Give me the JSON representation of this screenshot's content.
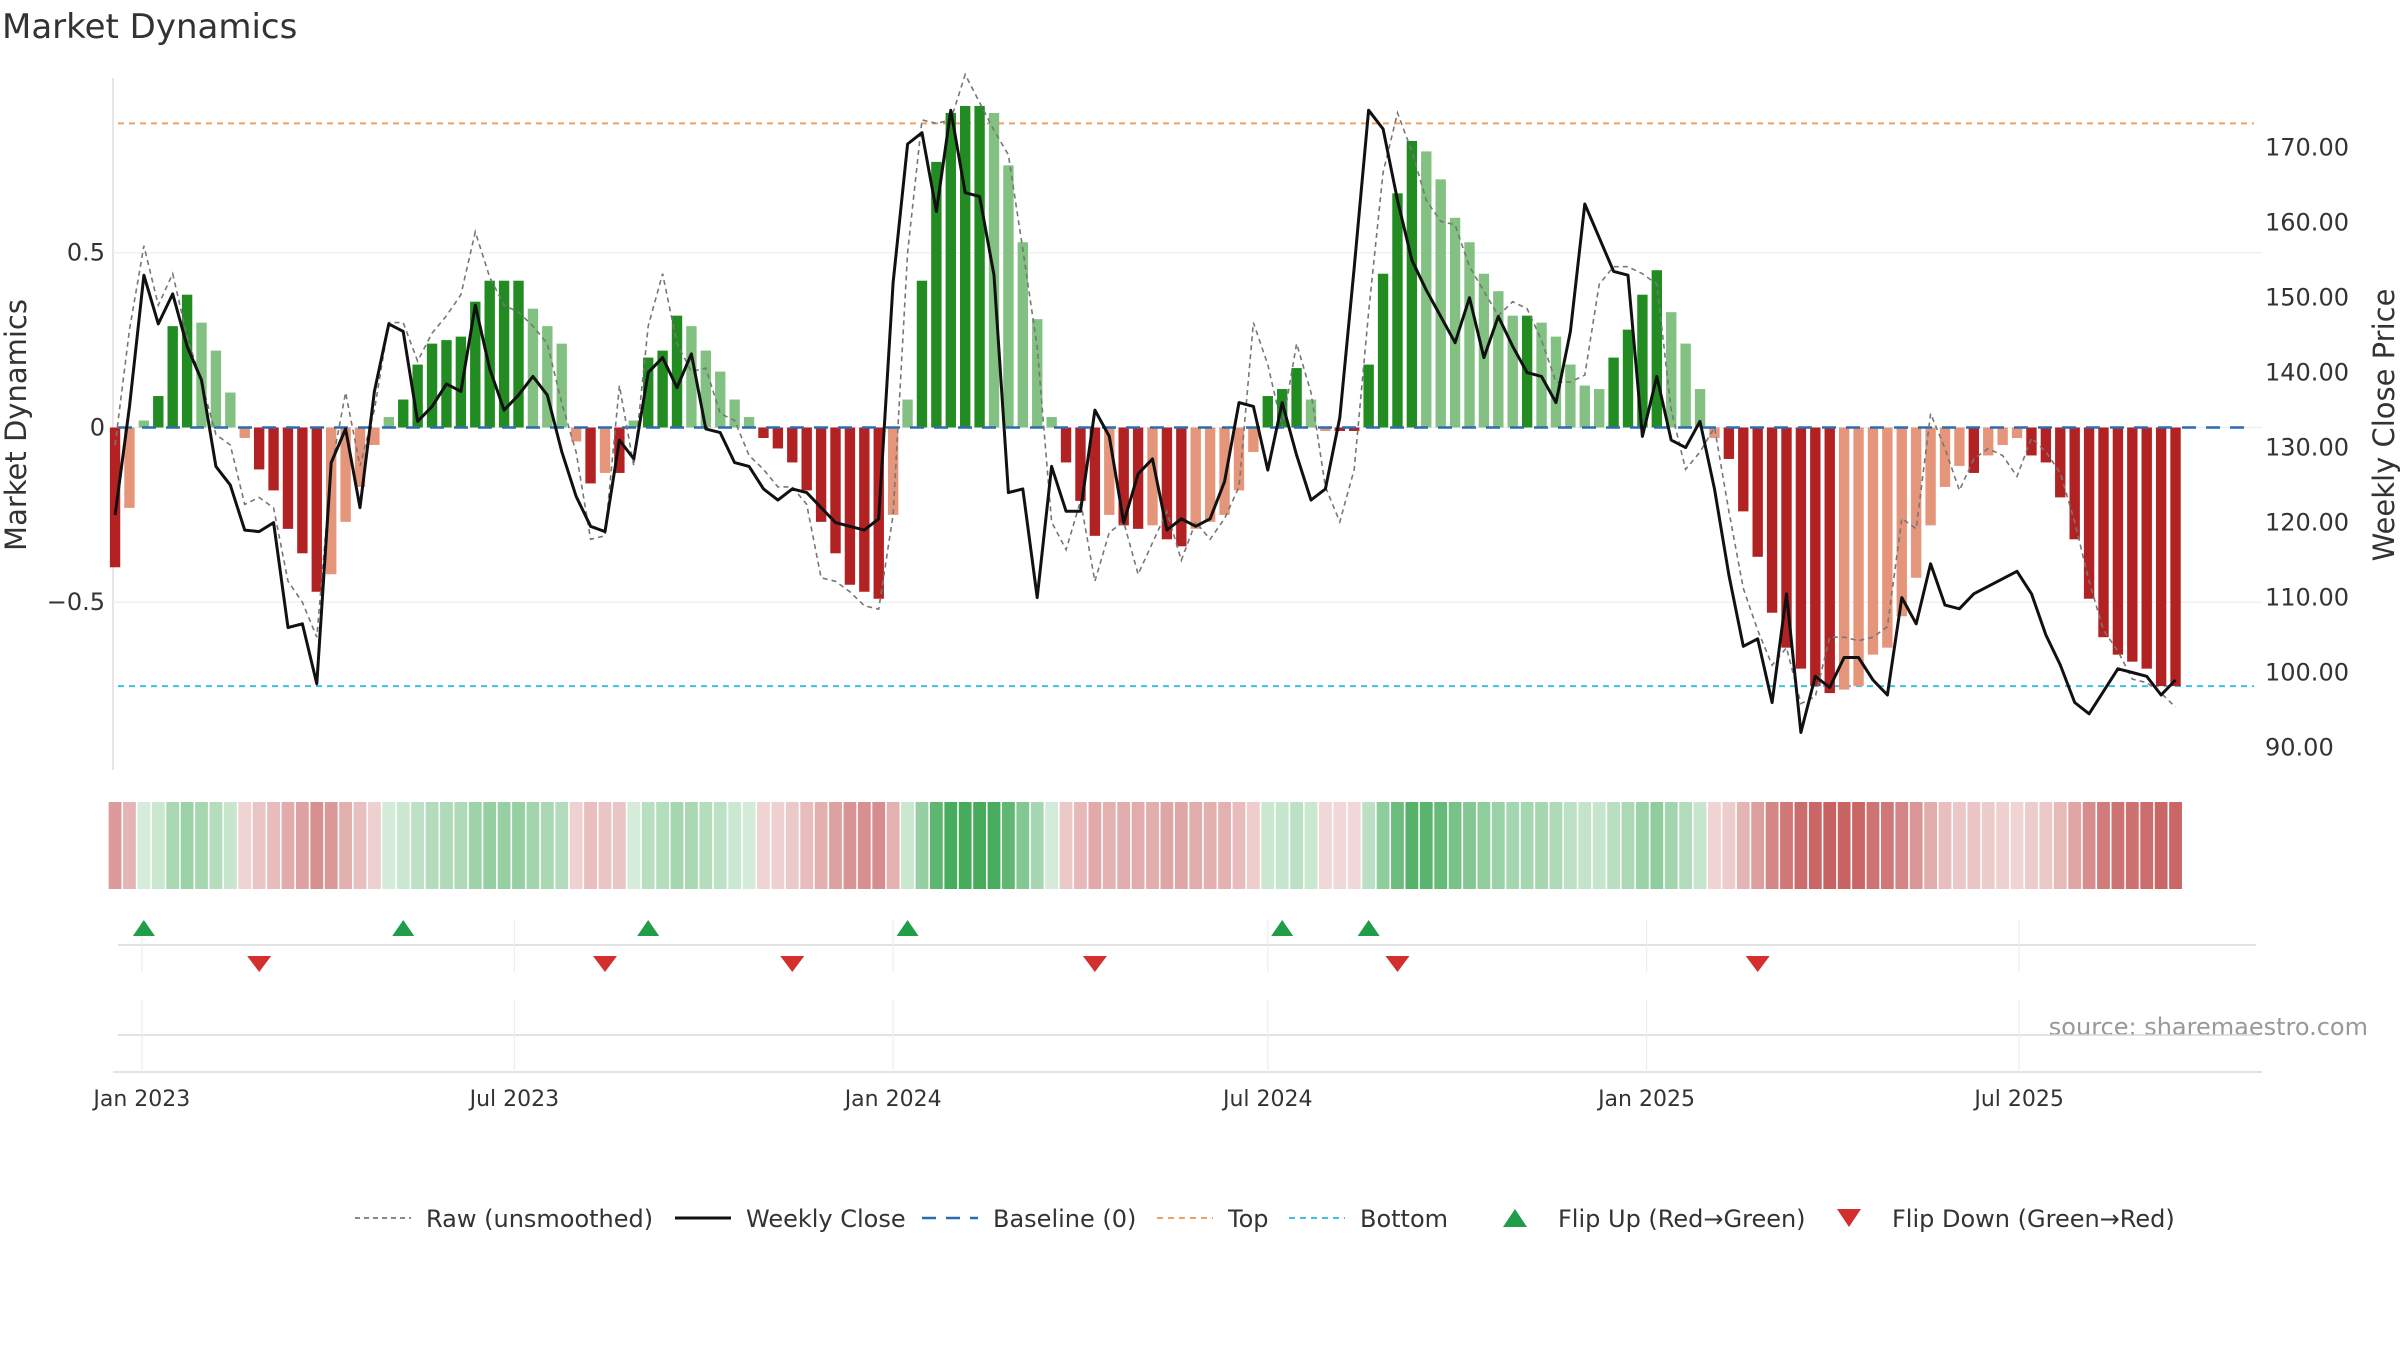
{
  "chart_data": {
    "type": "bar",
    "title": "Market Dynamics",
    "ylabel": "Market Dynamics",
    "y2label": "Weekly Close Price",
    "ylim": [
      -0.98,
      1.0
    ],
    "y2lim": [
      87.0,
      179.3
    ],
    "y_ticks": [
      {
        "v": 0.5,
        "label": "0.5"
      },
      {
        "v": 0,
        "label": "0"
      },
      {
        "v": -0.5,
        "label": "−0.5"
      }
    ],
    "y2_ticks": [
      {
        "v": 170,
        "label": "170.00"
      },
      {
        "v": 160,
        "label": "160.00"
      },
      {
        "v": 150,
        "label": "150.00"
      },
      {
        "v": 140,
        "label": "140.00"
      },
      {
        "v": 130,
        "label": "130.00"
      },
      {
        "v": 120,
        "label": "120.00"
      },
      {
        "v": 110,
        "label": "110.00"
      },
      {
        "v": 100,
        "label": "100.00"
      },
      {
        "v": 90,
        "label": "90.00"
      }
    ],
    "x_ticks": [
      {
        "date": "2023-01-01",
        "label": "Jan 2023"
      },
      {
        "date": "2023-07-01",
        "label": "Jul 2023"
      },
      {
        "date": "2024-01-01",
        "label": "Jan 2024"
      },
      {
        "date": "2024-07-01",
        "label": "Jul 2024"
      },
      {
        "date": "2025-01-01",
        "label": "Jan 2025"
      },
      {
        "date": "2025-07-01",
        "label": "Jul 2025"
      }
    ],
    "x_range": [
      "2022-12-18",
      "2025-10-27"
    ],
    "start_date": "2022-12-19",
    "top_line": 0.87,
    "bottom_line": -0.74,
    "grid": true,
    "legend_position": "bottom",
    "colors": {
      "green_strong": "#228b22",
      "green_light": "#82c182",
      "red_strong": "#b22222",
      "red_light": "#e5967a",
      "close": "#111111",
      "raw": "#777777",
      "baseline": "#2a6db0",
      "top": "#f0a060",
      "bottom": "#40c0e0",
      "flip_up": "#1f9d48",
      "flip_down": "#d32f2f"
    },
    "weeks": [
      "2022-12-19",
      "2022-12-26",
      "2023-01-02",
      "2023-01-09",
      "2023-01-16",
      "2023-01-23",
      "2023-01-30",
      "2023-02-06",
      "2023-02-13",
      "2023-02-20",
      "2023-02-27",
      "2023-03-06",
      "2023-03-13",
      "2023-03-20",
      "2023-03-27",
      "2023-04-03",
      "2023-04-10",
      "2023-04-17",
      "2023-04-24",
      "2023-05-01",
      "2023-05-08",
      "2023-05-15",
      "2023-05-22",
      "2023-05-29",
      "2023-06-05",
      "2023-06-12",
      "2023-06-19",
      "2023-06-26",
      "2023-07-03",
      "2023-07-10",
      "2023-07-17",
      "2023-07-24",
      "2023-07-31",
      "2023-08-07",
      "2023-08-14",
      "2023-08-21",
      "2023-08-28",
      "2023-09-04",
      "2023-09-11",
      "2023-09-18",
      "2023-09-25",
      "2023-10-02",
      "2023-10-09",
      "2023-10-16",
      "2023-10-23",
      "2023-10-30",
      "2023-11-06",
      "2023-11-13",
      "2023-11-20",
      "2023-11-27",
      "2023-12-04",
      "2023-12-11",
      "2023-12-18",
      "2023-12-25",
      "2024-01-01",
      "2024-01-08",
      "2024-01-15",
      "2024-01-22",
      "2024-01-29",
      "2024-02-05",
      "2024-02-12",
      "2024-02-19",
      "2024-02-26",
      "2024-03-04",
      "2024-03-11",
      "2024-03-18",
      "2024-03-25",
      "2024-04-01",
      "2024-04-08",
      "2024-04-15",
      "2024-04-22",
      "2024-04-29",
      "2024-05-06",
      "2024-05-13",
      "2024-05-20",
      "2024-05-27",
      "2024-06-03",
      "2024-06-10",
      "2024-06-17",
      "2024-06-24",
      "2024-07-01",
      "2024-07-08",
      "2024-07-15",
      "2024-07-22",
      "2024-07-29",
      "2024-08-05",
      "2024-08-12",
      "2024-08-19",
      "2024-08-26",
      "2024-09-02",
      "2024-09-09",
      "2024-09-16",
      "2024-09-23",
      "2024-09-30",
      "2024-10-07",
      "2024-10-14",
      "2024-10-21",
      "2024-10-28",
      "2024-11-04",
      "2024-11-11",
      "2024-11-18",
      "2024-11-25",
      "2024-12-02",
      "2024-12-09",
      "2024-12-16",
      "2024-12-23",
      "2024-12-30",
      "2025-01-06",
      "2025-01-13",
      "2025-01-20",
      "2025-01-27",
      "2025-02-03",
      "2025-02-10",
      "2025-02-17",
      "2025-02-24",
      "2025-03-03",
      "2025-03-10",
      "2025-03-17",
      "2025-03-24",
      "2025-03-31",
      "2025-04-07",
      "2025-04-14",
      "2025-04-21",
      "2025-04-28",
      "2025-05-05",
      "2025-05-12",
      "2025-05-19",
      "2025-05-26",
      "2025-06-02",
      "2025-06-09",
      "2025-06-16",
      "2025-06-23",
      "2025-06-30",
      "2025-07-07",
      "2025-07-14",
      "2025-07-21",
      "2025-07-28",
      "2025-08-04",
      "2025-08-11",
      "2025-08-18",
      "2025-08-25",
      "2025-09-01",
      "2025-09-08",
      "2025-09-15",
      "2025-09-22",
      "2025-09-29",
      "2025-10-06",
      "2025-10-13",
      "2025-10-20"
    ],
    "series": [
      {
        "name": "Market Dynamics",
        "type": "bar",
        "values": [
          -0.4,
          -0.23,
          0.02,
          0.09,
          0.29,
          0.38,
          0.3,
          0.22,
          0.1,
          -0.03,
          -0.12,
          -0.18,
          -0.29,
          -0.36,
          -0.47,
          -0.42,
          -0.27,
          -0.17,
          -0.05,
          0.03,
          0.08,
          0.18,
          0.24,
          0.25,
          0.26,
          0.36,
          0.42,
          0.42,
          0.42,
          0.34,
          0.29,
          0.24,
          -0.04,
          -0.16,
          -0.13,
          -0.13,
          0.02,
          0.2,
          0.22,
          0.32,
          0.29,
          0.22,
          0.16,
          0.08,
          0.03,
          -0.03,
          -0.06,
          -0.1,
          -0.18,
          -0.27,
          -0.36,
          -0.45,
          -0.47,
          -0.49,
          -0.25,
          0.08,
          0.42,
          0.76,
          0.9,
          0.92,
          0.92,
          0.9,
          0.75,
          0.53,
          0.31,
          0.03,
          -0.1,
          -0.21,
          -0.31,
          -0.25,
          -0.28,
          -0.29,
          -0.28,
          -0.32,
          -0.34,
          -0.29,
          -0.27,
          -0.25,
          -0.18,
          -0.07,
          0.09,
          0.11,
          0.17,
          0.08,
          -0.01,
          -0.01,
          -0.01,
          0.18,
          0.44,
          0.67,
          0.82,
          0.79,
          0.71,
          0.6,
          0.53,
          0.44,
          0.39,
          0.32,
          0.32,
          0.3,
          0.26,
          0.18,
          0.12,
          0.11,
          0.2,
          0.28,
          0.38,
          0.45,
          0.33,
          0.24,
          0.11,
          -0.03,
          -0.09,
          -0.24,
          -0.37,
          -0.53,
          -0.63,
          -0.69,
          -0.74,
          -0.76,
          -0.75,
          -0.74,
          -0.65,
          -0.63,
          -0.54,
          -0.43,
          -0.28,
          -0.17,
          -0.11,
          -0.13,
          -0.08,
          -0.05,
          -0.03,
          -0.08,
          -0.1,
          -0.2,
          -0.32,
          -0.49,
          -0.6,
          -0.65,
          -0.67,
          -0.69,
          -0.74,
          -0.74
        ]
      },
      {
        "name": "Raw (unsmoothed)",
        "type": "line",
        "values": [
          -0.05,
          0.28,
          0.52,
          0.35,
          0.44,
          0.26,
          0.13,
          -0.02,
          -0.05,
          -0.22,
          -0.2,
          -0.23,
          -0.44,
          -0.5,
          -0.6,
          -0.12,
          0.1,
          -0.11,
          0.05,
          0.3,
          0.3,
          0.19,
          0.27,
          0.32,
          0.38,
          0.56,
          0.43,
          0.35,
          0.33,
          0.29,
          0.24,
          0.07,
          -0.07,
          -0.32,
          -0.31,
          0.12,
          -0.11,
          0.29,
          0.44,
          0.24,
          0.16,
          0.17,
          0.04,
          0.02,
          -0.08,
          -0.12,
          -0.17,
          -0.17,
          -0.22,
          -0.43,
          -0.44,
          -0.47,
          -0.51,
          -0.52,
          -0.25,
          0.5,
          0.88,
          0.87,
          0.88,
          1.01,
          0.93,
          0.85,
          0.78,
          0.51,
          0.23,
          -0.27,
          -0.35,
          -0.21,
          -0.44,
          -0.3,
          -0.27,
          -0.42,
          -0.33,
          -0.24,
          -0.38,
          -0.27,
          -0.32,
          -0.26,
          -0.17,
          0.3,
          0.18,
          -0.0,
          0.24,
          0.1,
          -0.17,
          -0.27,
          -0.12,
          0.33,
          0.73,
          0.9,
          0.79,
          0.65,
          0.59,
          0.58,
          0.46,
          0.39,
          0.32,
          0.36,
          0.34,
          0.25,
          0.13,
          0.13,
          0.15,
          0.41,
          0.46,
          0.46,
          0.44,
          0.41,
          0.05,
          -0.12,
          -0.07,
          -0.0,
          -0.24,
          -0.46,
          -0.58,
          -0.68,
          -0.63,
          -0.79,
          -0.77,
          -0.6,
          -0.6,
          -0.61,
          -0.6,
          -0.57,
          -0.26,
          -0.29,
          0.04,
          -0.06,
          -0.18,
          -0.09,
          -0.06,
          -0.08,
          -0.14,
          -0.03,
          -0.07,
          -0.13,
          -0.27,
          -0.44,
          -0.58,
          -0.64,
          -0.72,
          -0.73,
          -0.76,
          -0.8
        ]
      },
      {
        "name": "Weekly Close",
        "type": "line",
        "axis": "right",
        "values": [
          121.0,
          135.5,
          153.0,
          146.5,
          150.5,
          143.5,
          139.0,
          127.5,
          125.0,
          119.0,
          118.8,
          120.0,
          106.0,
          106.5,
          98.5,
          128.0,
          132.5,
          122.0,
          137.5,
          146.5,
          145.5,
          133.5,
          135.5,
          138.5,
          137.5,
          149.0,
          140.5,
          135.0,
          137.0,
          139.5,
          137.0,
          129.5,
          123.5,
          119.5,
          118.8,
          131.0,
          128.5,
          140.0,
          142.0,
          138.0,
          142.5,
          132.5,
          132.0,
          128.0,
          127.5,
          124.5,
          123.0,
          124.5,
          124.0,
          122.0,
          120.0,
          119.5,
          119.0,
          120.5,
          152.0,
          170.5,
          172.0,
          161.5,
          175.0,
          164.0,
          163.5,
          153.0,
          124.0,
          124.5,
          110.0,
          127.5,
          121.5,
          121.5,
          135.0,
          131.5,
          120.0,
          126.5,
          128.5,
          119.0,
          120.5,
          119.5,
          120.5,
          125.5,
          136.0,
          135.5,
          127.0,
          136.0,
          129.0,
          123.0,
          124.5,
          134.0,
          154.0,
          175.0,
          172.5,
          163.0,
          155.0,
          151.0,
          147.5,
          144.0,
          150.0,
          142.0,
          147.5,
          143.5,
          140.0,
          139.5,
          136.0,
          145.5,
          162.5,
          158.0,
          153.5,
          153.0,
          131.5,
          139.5,
          131.0,
          130.0,
          133.5,
          124.5,
          113.0,
          103.5,
          104.5,
          96.0,
          110.5,
          92.0,
          99.5,
          98.0,
          102.0,
          102.0,
          99.0,
          97.0,
          110.0,
          106.5,
          114.5,
          109.0,
          108.5,
          110.5,
          111.5,
          112.5,
          113.5,
          110.5,
          105.0,
          101.0,
          96.0,
          94.5,
          97.5,
          100.5,
          100.0,
          99.5,
          97.0,
          99.0
        ]
      }
    ],
    "flip_up": [
      "2023-01-02",
      "2023-05-08",
      "2023-09-04",
      "2024-01-08",
      "2024-07-08",
      "2024-08-19"
    ],
    "flip_down": [
      "2023-02-27",
      "2023-08-14",
      "2023-11-13",
      "2024-04-08",
      "2024-09-02",
      "2025-02-24"
    ],
    "legend": [
      {
        "key": "raw",
        "label": "Raw (unsmoothed)"
      },
      {
        "key": "close",
        "label": "Weekly Close"
      },
      {
        "key": "baseline",
        "label": "Baseline (0)"
      },
      {
        "key": "top",
        "label": "Top"
      },
      {
        "key": "bottom",
        "label": "Bottom"
      },
      {
        "key": "flip_up",
        "label": "Flip Up (Red→Green)"
      },
      {
        "key": "flip_down",
        "label": "Flip Down (Green→Red)"
      }
    ],
    "source": "source: sharemaestro.com"
  }
}
